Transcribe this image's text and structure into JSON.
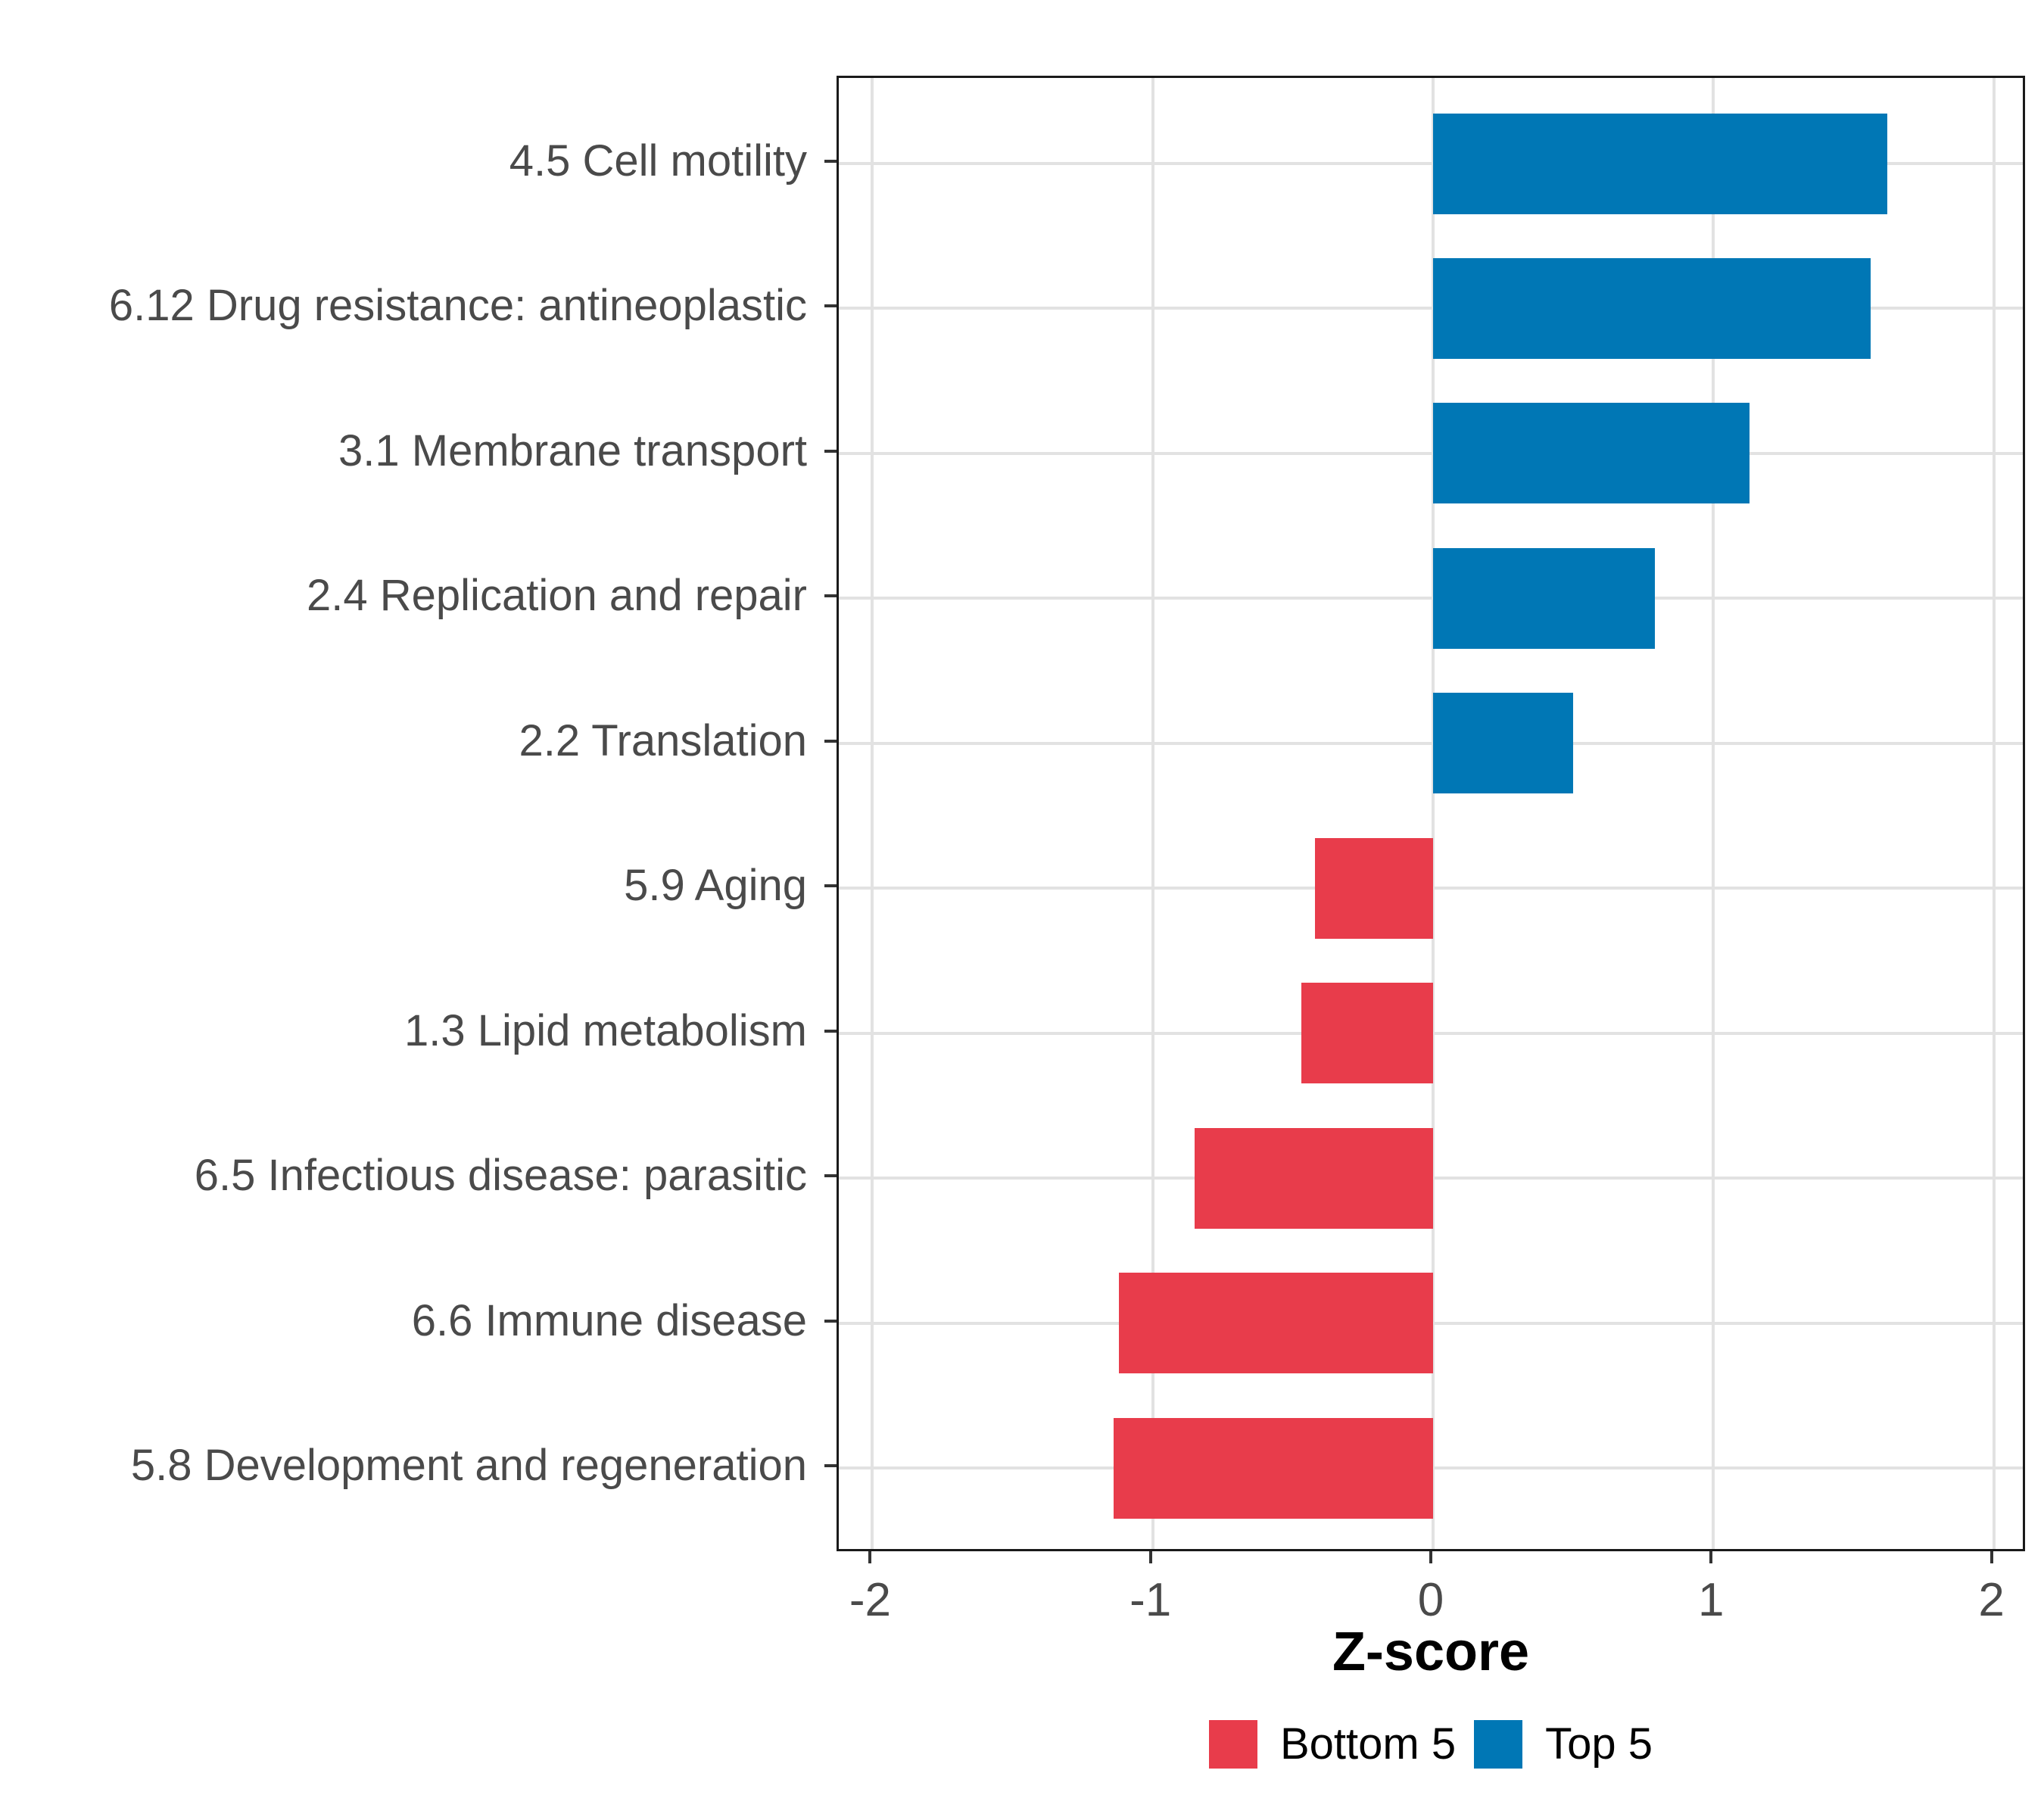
{
  "chart_data": {
    "type": "bar",
    "orientation": "horizontal",
    "title": "",
    "xlabel": "Z-score",
    "ylabel": "",
    "grid": true,
    "legend_position": "bottom",
    "xlim": [
      -2.12,
      2.12
    ],
    "xticks": [
      -2,
      -1,
      0,
      1,
      2
    ],
    "xtick_labels": [
      "-2",
      "-1",
      "0",
      "1",
      "2"
    ],
    "categories": [
      "4.5 Cell motility",
      "6.12 Drug resistance: antineoplastic",
      "3.1 Membrane transport",
      "2.4 Replication and repair",
      "2.2 Translation",
      "5.9 Aging",
      "1.3 Lipid metabolism",
      "6.5 Infectious disease: parasitic",
      "6.6 Immune disease",
      "5.8 Development and regeneration"
    ],
    "values": [
      1.62,
      1.56,
      1.13,
      0.79,
      0.5,
      -0.42,
      -0.47,
      -0.85,
      -1.12,
      -1.14
    ],
    "groups": [
      "Top 5",
      "Top 5",
      "Top 5",
      "Top 5",
      "Top 5",
      "Bottom 5",
      "Bottom 5",
      "Bottom 5",
      "Bottom 5",
      "Bottom 5"
    ],
    "legend": [
      {
        "label": "Bottom 5",
        "color": "#E83C4B"
      },
      {
        "label": "Top 5",
        "color": "#0077B5"
      }
    ],
    "colors": {
      "grid": "#E2E2E2",
      "panel_border": "#1A1A1A",
      "axis_text": "#4A4A4A",
      "tick_mark": "#333333"
    }
  }
}
